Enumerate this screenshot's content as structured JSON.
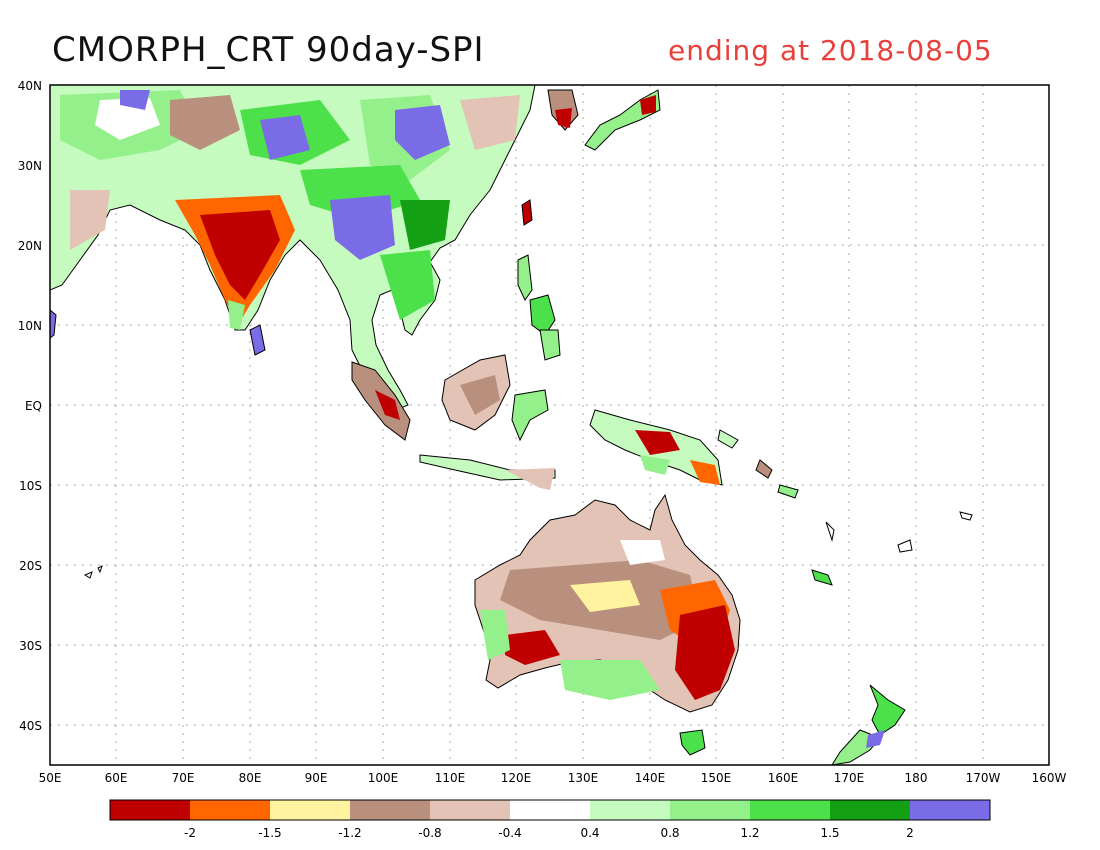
{
  "map": {
    "title": "CMORPH_CRT 90day-SPI",
    "subtitle": "ending at 2018-08-05",
    "lat_labels": [
      "40N",
      "30N",
      "20N",
      "10N",
      "EQ",
      "10S",
      "20S",
      "30S",
      "40S"
    ],
    "lon_labels": [
      "50E",
      "60E",
      "70E",
      "80E",
      "90E",
      "100E",
      "110E",
      "120E",
      "130E",
      "140E",
      "150E",
      "160E",
      "170E",
      "180",
      "170W",
      "160W"
    ]
  },
  "colorbar": {
    "colors": [
      "#c00000",
      "#ff6600",
      "#fff3a0",
      "#b98f7e",
      "#e3c3b5",
      "#ffffff",
      "#c6fbc0",
      "#94f08a",
      "#4ce04a",
      "#14a014",
      "#7a6ce6"
    ],
    "labels": [
      "-2",
      "-1.5",
      "-1.2",
      "-0.8",
      "-0.4",
      "0.4",
      "0.8",
      "1.2",
      "1.5",
      "2"
    ]
  }
}
